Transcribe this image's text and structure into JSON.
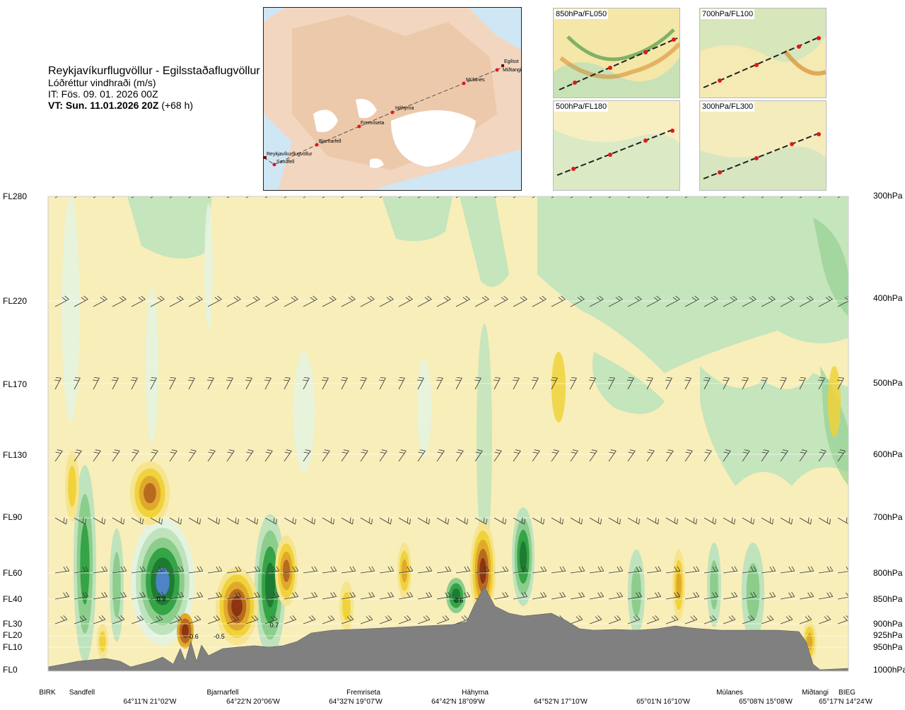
{
  "header": {
    "route": "Reykjavíkurflugvöllur - Egilsstaðaflugvöllur",
    "variable": "Lóðréttur vindhraði (m/s)",
    "issue_time": "IT: Fös. 09. 01. 2026 00Z",
    "valid_time_bold": "VT: Sun. 11.01.2026 20Z",
    "valid_time_offset": "(+68 h)"
  },
  "route_map": {
    "labels": [
      "Reykjavíkurflugvöllur",
      "Sandfell",
      "Bjarnarfell",
      "Fremriseta",
      "Háhyrna",
      "Múlanes",
      "Miðtangi",
      "Egilsst"
    ]
  },
  "level_maps": [
    {
      "label": "850hPa/FL050"
    },
    {
      "label": "700hPa/FL100"
    },
    {
      "label": "500hPa/FL180"
    },
    {
      "label": "300hPa/FL300"
    }
  ],
  "chart_data": {
    "type": "heatmap",
    "description_units": "vertical wind speed m/s",
    "levels": [
      {
        "fl": "FL280",
        "hpa": "300hPa"
      },
      {
        "fl": "FL220",
        "hpa": "400hPa"
      },
      {
        "fl": "FL170",
        "hpa": "500hPa"
      },
      {
        "fl": "FL130",
        "hpa": "600hPa"
      },
      {
        "fl": "FL90",
        "hpa": "700hPa"
      },
      {
        "fl": "FL60",
        "hpa": "800hPa"
      },
      {
        "fl": "FL40",
        "hpa": "850hPa"
      },
      {
        "fl": "FL30",
        "hpa": "900hPa"
      },
      {
        "fl": "FL20",
        "hpa": "925hPa"
      },
      {
        "fl": "FL10",
        "hpa": "950hPa"
      },
      {
        "fl": "FL0",
        "hpa": "1000hPa"
      }
    ],
    "stations": [
      "BIRK",
      "Sandfell",
      "Bjarnarfell",
      "Fremriseta",
      "Háhyrna",
      "Múlanes",
      "Miðtangi",
      "BIEG"
    ],
    "coordinates": [
      "64°11'N 21°02'W",
      "64°22'N 20°06'W",
      "64°32'N 19°07'W",
      "64°42'N 18°09'W",
      "64°52'N 17°10'W",
      "65°01'N 16°10'W",
      "65°08'N 15°08'W",
      "65°17'N 14°24'W"
    ],
    "annotations": [
      "0.9",
      "-0.6",
      "-0.5",
      "0.7",
      "0.6"
    ],
    "colors": {
      "up_weak": "#e4f3e0",
      "up_light": "#bfe3bd",
      "up_mid": "#8ccd8c",
      "up_strong": "#35a447",
      "up_max": "#1d7c32",
      "up_extreme": "#4f83c4",
      "down_weak": "#fbf3c7",
      "down_light": "#f6e48f",
      "down_mid": "#f0d23a",
      "down_strong": "#e0a92c",
      "down_max": "#b86a1e",
      "down_extreme": "#8c3510",
      "terrain": "#808080"
    }
  }
}
